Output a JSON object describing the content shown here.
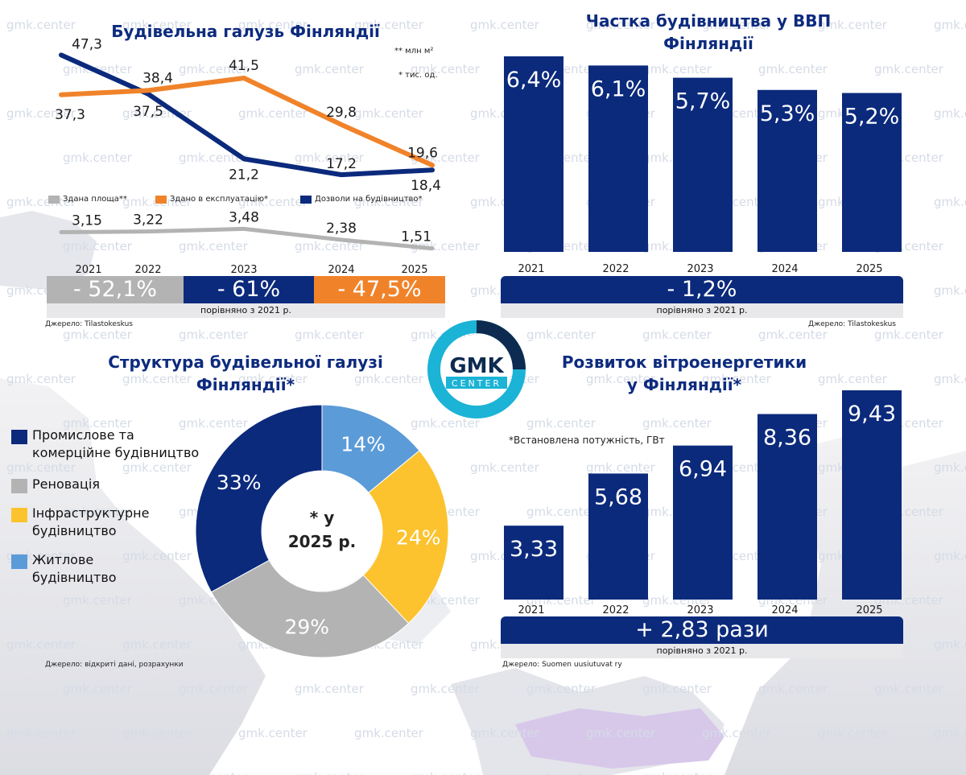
{
  "brand": {
    "logo_text": "GMK",
    "logo_sub": "CENTER",
    "watermark": "gmk.center"
  },
  "colors": {
    "navy": "#0b2a7c",
    "orange": "#f0832a",
    "gray": "#b3b3b3",
    "yellow": "#fcc32f",
    "lightblue": "#5b9bd8",
    "logo_ring": "#1bb3d6"
  },
  "panel1": {
    "title": "Будівельна галузь Фінляндії",
    "unit_note_1": "** млн м²",
    "unit_note_2": "* тис. од.",
    "legend": {
      "area": "Здана площа**",
      "commissioned": "Здано в експлуатацію*",
      "permits": "Дозволи на будівництво*"
    },
    "changes": {
      "area": "- 52,1%",
      "permits": "- 61%",
      "commissioned": "- 47,5%"
    },
    "compare": "порівняно з 2021 р.",
    "source": "Джерело: Tilastokeskus"
  },
  "panel2": {
    "title_1": "Частка будівництва у ВВП",
    "title_2": "Фінляндії",
    "change": "- 1,2%",
    "compare": "порівняно з 2021 р.",
    "source": "Джерело: Tilastokeskus"
  },
  "panel3": {
    "title_1": "Структура будівельної галузі",
    "title_2": "Фінляндії*",
    "center_1": "* у",
    "center_2": "2025 р.",
    "source": "Джерело: відкриті дані, розрахунки"
  },
  "panel4": {
    "title_1": "Розвиток вітроенергетики",
    "title_2": "у Фінляндії*",
    "note": "*Встановлена потужність, ГВт",
    "change": "+ 2,83 рази",
    "compare": "порівняно з 2021 р.",
    "source": "Джерело: Suomen uusiutuvat ry"
  },
  "chart_data": [
    {
      "type": "line",
      "title": "Будівельна галузь Фінляндії",
      "x": [
        "2021",
        "2022",
        "2023",
        "2024",
        "2025"
      ],
      "series": [
        {
          "name": "Дозволи на будівництво*",
          "values": [
            47.3,
            37.5,
            21.2,
            17.2,
            18.4
          ],
          "labels": [
            "47,3",
            "37,5",
            "21,2",
            "17,2",
            "18,4"
          ]
        },
        {
          "name": "Здано в експлуатацію*",
          "values": [
            37.3,
            38.4,
            41.5,
            29.8,
            19.6
          ],
          "labels": [
            "37,3",
            "38,4",
            "41,5",
            "29,8",
            "19,6"
          ]
        },
        {
          "name": "Здана площа**",
          "values": [
            3.15,
            3.22,
            3.48,
            2.38,
            1.51
          ],
          "labels": [
            "3,15",
            "3,22",
            "3,48",
            "2,38",
            "1,51"
          ]
        }
      ]
    },
    {
      "type": "bar",
      "title": "Частка будівництва у ВВП Фінляндії",
      "categories": [
        "2021",
        "2022",
        "2023",
        "2024",
        "2025"
      ],
      "values": [
        6.4,
        6.1,
        5.7,
        5.3,
        5.2
      ],
      "labels": [
        "6,4%",
        "6,1%",
        "5,7%",
        "5,3%",
        "5,2%"
      ]
    },
    {
      "type": "pie",
      "title": "Структура будівельної галузі Фінляндії*",
      "categories": [
        "Промислове та комерційне будівництво",
        "Реновація",
        "Інфраструктурне будівництво",
        "Житлове будівництво"
      ],
      "values": [
        33,
        29,
        24,
        14
      ],
      "labels": [
        "33%",
        "29%",
        "24%",
        "14%"
      ]
    },
    {
      "type": "bar",
      "title": "Розвиток вітроенергетики у Фінляндії*",
      "categories": [
        "2021",
        "2022",
        "2023",
        "2024",
        "2025"
      ],
      "values": [
        3.33,
        5.68,
        6.94,
        8.36,
        9.43
      ],
      "labels": [
        "3,33",
        "5,68",
        "6,94",
        "8,36",
        "9,43"
      ]
    }
  ],
  "pie_legend": [
    {
      "line1": "Промислове та",
      "line2": "комерційне будівництво"
    },
    {
      "line1": "Реновація",
      "line2": ""
    },
    {
      "line1": "Інфраструктурне",
      "line2": "будівництво"
    },
    {
      "line1": "Житлове",
      "line2": "будівництво"
    }
  ]
}
